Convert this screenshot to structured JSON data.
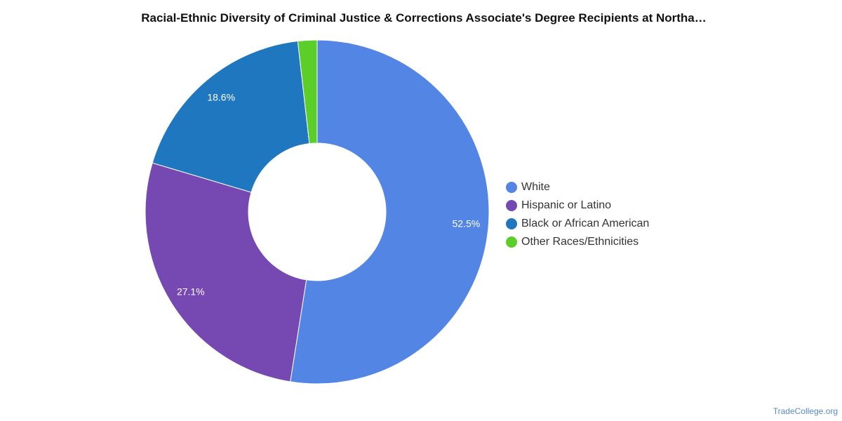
{
  "chart_data": {
    "type": "pie",
    "title": "Racial-Ethnic Diversity of Criminal Justice & Corrections Associate's Degree Recipients at Northa…",
    "categories": [
      "White",
      "Hispanic or Latino",
      "Black or African American",
      "Other Races/Ethnicities"
    ],
    "values": [
      52.5,
      27.1,
      18.6,
      1.8
    ],
    "labels": [
      "52.5%",
      "27.1%",
      "18.6%",
      ""
    ],
    "colors": [
      "#5386e4",
      "#7649b2",
      "#1f77c0",
      "#5bce2a"
    ],
    "donut": true,
    "legend_position": "right"
  },
  "credit": "TradeCollege.org"
}
